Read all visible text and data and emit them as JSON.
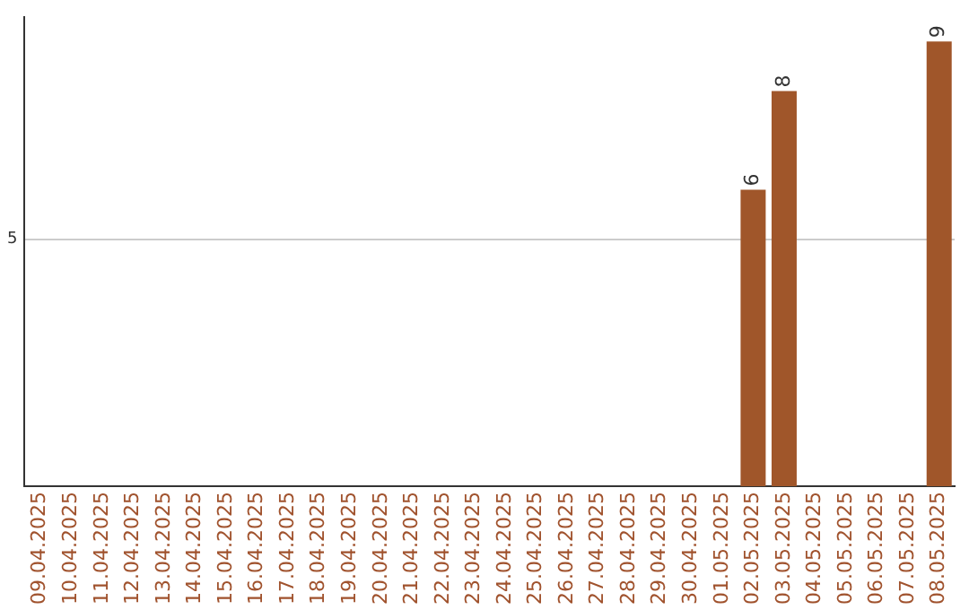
{
  "chart_data": {
    "type": "bar",
    "categories": [
      "09.04.2025",
      "10.04.2025",
      "11.04.2025",
      "12.04.2025",
      "13.04.2025",
      "14.04.2025",
      "15.04.2025",
      "16.04.2025",
      "17.04.2025",
      "18.04.2025",
      "19.04.2025",
      "20.04.2025",
      "21.04.2025",
      "22.04.2025",
      "23.04.2025",
      "24.04.2025",
      "25.04.2025",
      "26.04.2025",
      "27.04.2025",
      "28.04.2025",
      "29.04.2025",
      "30.04.2025",
      "01.05.2025",
      "02.05.2025",
      "03.05.2025",
      "04.05.2025",
      "05.05.2025",
      "06.05.2025",
      "07.05.2025",
      "08.05.2025"
    ],
    "values": [
      null,
      null,
      null,
      null,
      null,
      null,
      null,
      null,
      null,
      null,
      null,
      null,
      null,
      null,
      null,
      null,
      null,
      null,
      null,
      null,
      null,
      null,
      null,
      6,
      8,
      null,
      null,
      null,
      null,
      9
    ],
    "color": "#a0562a",
    "ylim": [
      0,
      9.5
    ],
    "yticks": [
      5
    ],
    "grid": "y",
    "data_labels": true
  }
}
